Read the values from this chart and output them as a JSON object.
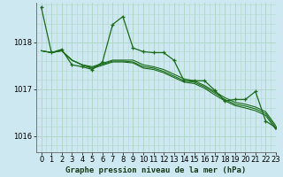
{
  "title": "Graphe pression niveau de la mer (hPa)",
  "background_color": "#cde8f0",
  "grid_color": "#b0d8c8",
  "line_color": "#1a6b1a",
  "xlim": [
    -0.5,
    23
  ],
  "ylim": [
    1015.65,
    1018.85
  ],
  "yticks": [
    1016,
    1017,
    1018
  ],
  "xticks": [
    0,
    1,
    2,
    3,
    4,
    5,
    6,
    7,
    8,
    9,
    10,
    11,
    12,
    13,
    14,
    15,
    16,
    17,
    18,
    19,
    20,
    21,
    22,
    23
  ],
  "series_jagged": [
    1018.75,
    1017.78,
    1017.85,
    1017.52,
    1017.48,
    1017.42,
    1017.58,
    1018.38,
    1018.55,
    1017.88,
    1017.8,
    1017.78,
    1017.78,
    1017.62,
    1017.18,
    1017.18,
    1017.18,
    1016.98,
    1016.75,
    1016.78,
    1016.78,
    1016.95,
    1016.32,
    1016.18
  ],
  "series_trend1": [
    1017.82,
    1017.78,
    1017.82,
    1017.62,
    1017.52,
    1017.48,
    1017.55,
    1017.62,
    1017.62,
    1017.62,
    1017.52,
    1017.48,
    1017.42,
    1017.32,
    1017.22,
    1017.18,
    1017.08,
    1016.95,
    1016.82,
    1016.72,
    1016.68,
    1016.62,
    1016.52,
    1016.22
  ],
  "series_trend2": [
    1017.82,
    1017.78,
    1017.82,
    1017.62,
    1017.52,
    1017.46,
    1017.53,
    1017.6,
    1017.6,
    1017.58,
    1017.48,
    1017.45,
    1017.38,
    1017.28,
    1017.18,
    1017.15,
    1017.05,
    1016.92,
    1016.78,
    1016.68,
    1016.64,
    1016.58,
    1016.48,
    1016.18
  ],
  "series_trend3": [
    1017.82,
    1017.78,
    1017.82,
    1017.62,
    1017.52,
    1017.44,
    1017.51,
    1017.58,
    1017.58,
    1017.56,
    1017.45,
    1017.42,
    1017.35,
    1017.25,
    1017.15,
    1017.12,
    1017.02,
    1016.88,
    1016.75,
    1016.65,
    1016.6,
    1016.54,
    1016.44,
    1016.14
  ],
  "tick_fontsize": 6,
  "title_fontsize": 6.5
}
